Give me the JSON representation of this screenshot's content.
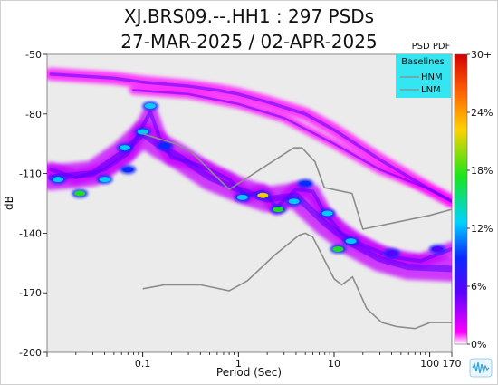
{
  "title": "XJ.BRS09.--.HH1 : 297 PSDs",
  "subtitle": "27-MAR-2025 / 02-APR-2025",
  "chart_data": {
    "type": "heatmap",
    "title": "XJ.BRS09.--.HH1 : 297 PSDs",
    "subtitle": "27-MAR-2025 / 02-APR-2025",
    "xlabel": "Period (Sec)",
    "ylabel": "dB",
    "x_scale": "log",
    "xlim": [
      0.01,
      170
    ],
    "ylim": [
      -200,
      -50
    ],
    "x_ticks": [
      {
        "label": "0.1",
        "value": 0.1
      },
      {
        "label": "1",
        "value": 1
      },
      {
        "label": "10",
        "value": 10
      },
      {
        "label": "100",
        "value": 100
      },
      {
        "label": "170",
        "value": 170
      }
    ],
    "y_ticks": [
      {
        "label": "-50",
        "value": -50
      },
      {
        "label": "-80",
        "value": -80
      },
      {
        "label": "-110",
        "value": -110
      },
      {
        "label": "-140",
        "value": -140
      },
      {
        "label": "-170",
        "value": -170
      },
      {
        "label": "-200",
        "value": -200
      }
    ],
    "colorbar": {
      "title": "PSD PDF",
      "ticks": [
        "30+",
        "24%",
        "18%",
        "12%",
        "6%",
        "0%"
      ],
      "colors": [
        "#d40000",
        "#ff5a00",
        "#ffd200",
        "#19e619",
        "#00d2ff",
        "#0a28ff",
        "#5a00ff",
        "#ff00ff",
        "#ffffff"
      ]
    },
    "legend": {
      "title": "Baselines",
      "placement": "top-right",
      "entries": [
        "HNM",
        "LNM"
      ]
    },
    "series": [
      {
        "name": "HNM",
        "points": [
          [
            0.1,
            -90
          ],
          [
            0.22,
            -95
          ],
          [
            0.32,
            -99
          ],
          [
            0.8,
            -118
          ],
          [
            3.8,
            -97
          ],
          [
            4.6,
            -97
          ],
          [
            6.3,
            -104
          ],
          [
            7.9,
            -117
          ],
          [
            15.4,
            -120
          ],
          [
            20,
            -138
          ],
          [
            100,
            -131
          ],
          [
            170,
            -128
          ]
        ]
      },
      {
        "name": "LNM",
        "points": [
          [
            0.1,
            -168
          ],
          [
            0.17,
            -166
          ],
          [
            0.4,
            -166
          ],
          [
            0.8,
            -169
          ],
          [
            1.24,
            -164
          ],
          [
            2.4,
            -151
          ],
          [
            4.3,
            -141
          ],
          [
            5,
            -140
          ],
          [
            6,
            -142
          ],
          [
            10,
            -163
          ],
          [
            12,
            -166
          ],
          [
            15.6,
            -162
          ],
          [
            21.9,
            -178
          ],
          [
            31.6,
            -185
          ],
          [
            45,
            -187
          ],
          [
            70,
            -188
          ],
          [
            101,
            -185
          ],
          [
            170,
            -185
          ]
        ]
      }
    ],
    "density_bands": [
      {
        "level": 0.05,
        "width": 16,
        "points": [
          [
            0.011,
            -108
          ],
          [
            0.02,
            -112
          ],
          [
            0.04,
            -108
          ],
          [
            0.07,
            -100
          ],
          [
            0.1,
            -86
          ],
          [
            0.12,
            -79
          ],
          [
            0.15,
            -92
          ],
          [
            0.2,
            -102
          ],
          [
            0.3,
            -104
          ],
          [
            0.5,
            -108
          ],
          [
            0.8,
            -113
          ],
          [
            1.2,
            -121
          ],
          [
            1.8,
            -119
          ],
          [
            2.5,
            -127
          ],
          [
            4,
            -118
          ],
          [
            6,
            -119
          ],
          [
            8,
            -130
          ],
          [
            12,
            -140
          ],
          [
            20,
            -146
          ],
          [
            40,
            -152
          ],
          [
            80,
            -154
          ],
          [
            170,
            -148
          ]
        ]
      },
      {
        "level": 0.03,
        "width": 28,
        "points": [
          [
            0.011,
            -112
          ],
          [
            0.03,
            -110
          ],
          [
            0.06,
            -100
          ],
          [
            0.1,
            -90
          ],
          [
            0.15,
            -96
          ],
          [
            0.25,
            -102
          ],
          [
            0.5,
            -112
          ],
          [
            1,
            -118
          ],
          [
            2,
            -123
          ],
          [
            4,
            -121
          ],
          [
            8,
            -135
          ],
          [
            15,
            -145
          ],
          [
            30,
            -153
          ],
          [
            60,
            -157
          ],
          [
            170,
            -158
          ]
        ]
      },
      {
        "level": 0.02,
        "width": 14,
        "points": [
          [
            0.011,
            -60
          ],
          [
            0.05,
            -62
          ],
          [
            0.1,
            -64
          ],
          [
            0.3,
            -66
          ],
          [
            0.6,
            -68
          ],
          [
            1,
            -70
          ],
          [
            2,
            -74
          ],
          [
            5,
            -80
          ],
          [
            10,
            -88
          ],
          [
            30,
            -103
          ],
          [
            100,
            -118
          ],
          [
            170,
            -124
          ]
        ]
      },
      {
        "level": 0.02,
        "width": 10,
        "points": [
          [
            0.08,
            -68
          ],
          [
            0.3,
            -70
          ],
          [
            1,
            -75
          ],
          [
            3,
            -82
          ],
          [
            10,
            -95
          ],
          [
            30,
            -108
          ],
          [
            100,
            -118
          ],
          [
            170,
            -124
          ]
        ]
      }
    ],
    "hot_spots": [
      {
        "x": 0.013,
        "y": -113,
        "level": 0.14
      },
      {
        "x": 0.022,
        "y": -120,
        "level": 0.18
      },
      {
        "x": 0.04,
        "y": -113,
        "level": 0.13
      },
      {
        "x": 0.065,
        "y": -97,
        "level": 0.12
      },
      {
        "x": 0.07,
        "y": -108,
        "level": 0.1
      },
      {
        "x": 0.1,
        "y": -89,
        "level": 0.16
      },
      {
        "x": 0.12,
        "y": -76,
        "level": 0.14
      },
      {
        "x": 0.17,
        "y": -96,
        "level": 0.1
      },
      {
        "x": 1.1,
        "y": -122,
        "level": 0.14
      },
      {
        "x": 1.8,
        "y": -121,
        "level": 0.26
      },
      {
        "x": 2.6,
        "y": -128,
        "level": 0.22
      },
      {
        "x": 3.8,
        "y": -124,
        "level": 0.14
      },
      {
        "x": 5,
        "y": -115,
        "level": 0.1
      },
      {
        "x": 8.5,
        "y": -130,
        "level": 0.12
      },
      {
        "x": 11,
        "y": -148,
        "level": 0.2
      },
      {
        "x": 15,
        "y": -144,
        "level": 0.12
      },
      {
        "x": 40,
        "y": -150,
        "level": 0.08
      },
      {
        "x": 120,
        "y": -148,
        "level": 0.08
      }
    ]
  }
}
